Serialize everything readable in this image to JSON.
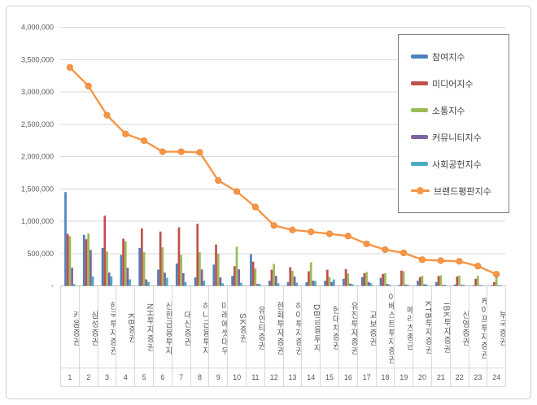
{
  "chart_data": {
    "type": "bar",
    "combo": "clustered bars with overlaid line series",
    "categories": [
      "키움증권",
      "삼성증권",
      "한국투자증권",
      "KB증권",
      "NH투자증권",
      "신한금융투자",
      "대신증권",
      "하나금융투자",
      "미래에셋대우",
      "SK증권",
      "유안타증권",
      "한화투자증권",
      "하이투자증권",
      "DB금융투자",
      "현대차증권",
      "유진투자증권",
      "교보증권",
      "이베스트투자증권",
      "메리츠종금",
      "KTB투자증권",
      "IBK투자증권",
      "신영증권",
      "케이프투자증권",
      "부국증권"
    ],
    "category_numbers": [
      "1",
      "2",
      "3",
      "4",
      "5",
      "6",
      "7",
      "8",
      "9",
      "10",
      "11",
      "12",
      "13",
      "14",
      "15",
      "16",
      "17",
      "18",
      "19",
      "20",
      "21",
      "22",
      "23",
      "24"
    ],
    "series": [
      {
        "name": "참여지수",
        "kind": "bar",
        "color": "#4F81BD",
        "values": [
          1450000,
          790000,
          585000,
          480000,
          585000,
          250000,
          345000,
          130000,
          330000,
          155000,
          490000,
          80000,
          60000,
          55000,
          80000,
          110000,
          135000,
          125000,
          15000,
          80000,
          60000,
          20000,
          10000,
          10000
        ]
      },
      {
        "name": "미디어지수",
        "kind": "bar",
        "color": "#C0504D",
        "values": [
          805000,
          720000,
          1085000,
          730000,
          890000,
          840000,
          905000,
          960000,
          640000,
          305000,
          375000,
          250000,
          290000,
          225000,
          250000,
          260000,
          195000,
          185000,
          235000,
          135000,
          150000,
          145000,
          110000,
          60000
        ]
      },
      {
        "name": "소통지수",
        "kind": "bar",
        "color": "#9BBB59",
        "values": [
          770000,
          810000,
          530000,
          690000,
          520000,
          595000,
          480000,
          520000,
          495000,
          605000,
          270000,
          340000,
          235000,
          365000,
          140000,
          190000,
          215000,
          195000,
          225000,
          155000,
          165000,
          160000,
          155000,
          150000
        ]
      },
      {
        "name": "커뮤니티지수",
        "kind": "bar",
        "color": "#8064A2",
        "values": [
          280000,
          555000,
          205000,
          280000,
          100000,
          205000,
          195000,
          255000,
          130000,
          255000,
          30000,
          155000,
          145000,
          80000,
          60000,
          35000,
          60000,
          30000,
          20000,
          25000,
          15000,
          15000,
          10000,
          10000
        ]
      },
      {
        "name": "사회공헌지수",
        "kind": "bar",
        "color": "#4BACC6",
        "values": [
          25000,
          145000,
          145000,
          100000,
          60000,
          125000,
          60000,
          80000,
          40000,
          50000,
          30000,
          40000,
          50000,
          75000,
          100000,
          25000,
          40000,
          20000,
          15000,
          20000,
          15000,
          15000,
          10000,
          10000
        ]
      },
      {
        "name": "브랜드평판지수",
        "kind": "line",
        "color": "#F79646",
        "values": [
          3380000,
          3090000,
          2640000,
          2350000,
          2245000,
          2075000,
          2075000,
          2065000,
          1630000,
          1460000,
          1220000,
          935000,
          865000,
          835000,
          805000,
          770000,
          650000,
          560000,
          510000,
          405000,
          390000,
          380000,
          305000,
          180000
        ]
      }
    ],
    "y_axis": {
      "min": 0,
      "max": 4000000,
      "step": 500000,
      "tick_labels": [
        "-",
        "500,000",
        "1,000,000",
        "1,500,000",
        "2,000,000",
        "2,500,000",
        "3,000,000",
        "3,500,000",
        "4,000,000"
      ]
    },
    "legend_position": "top-right",
    "grid": true,
    "style": {
      "grid_color": "#d9d9d9",
      "axis_color": "#bfbfbf",
      "tick_text_color": "#595959",
      "legend_border_color": "#7f7f7f"
    }
  }
}
